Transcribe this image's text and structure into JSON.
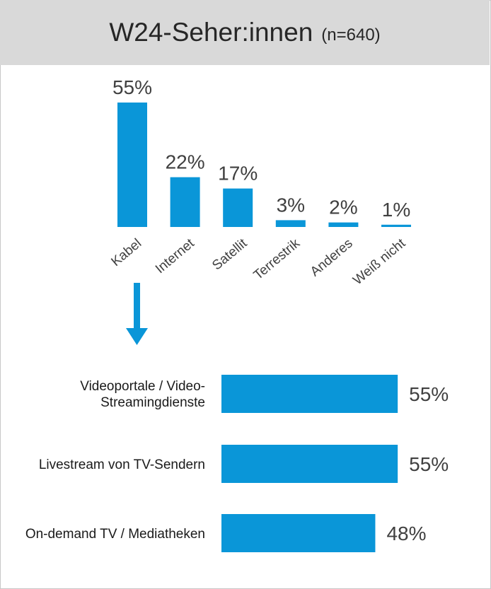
{
  "header": {
    "title": "W24-Seher:innen",
    "subtitle": "(n=640)"
  },
  "chart_data": [
    {
      "type": "bar",
      "categories": [
        "Kabel",
        "Internet",
        "Satellit",
        "Terrestrik",
        "Anderes",
        "Weiß nicht"
      ],
      "values": [
        55,
        22,
        17,
        3,
        2,
        1
      ],
      "value_labels": [
        "55%",
        "22%",
        "17%",
        "3%",
        "2%",
        "1%"
      ],
      "color": "#0a96d8"
    },
    {
      "type": "barh",
      "categories": [
        "Videoportale / Video-Streamingdienste",
        "Livestream von TV-Sendern",
        "On-demand TV / Mediatheken"
      ],
      "values": [
        55,
        55,
        48
      ],
      "value_labels": [
        "55%",
        "55%",
        "48%"
      ],
      "color": "#0a96d8"
    }
  ]
}
